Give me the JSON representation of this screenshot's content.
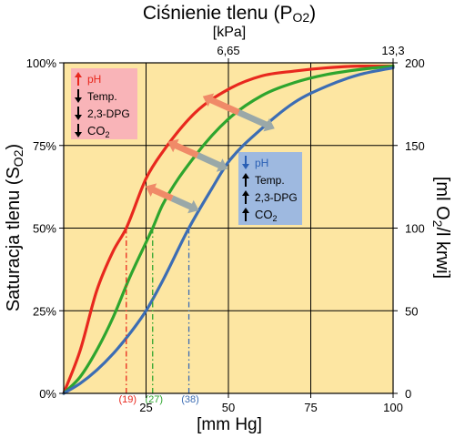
{
  "chart_data": {
    "type": "line",
    "title_prefix": "Ciśnienie tlenu (P",
    "title_sub": "O2",
    "title_suffix": ")",
    "title_unit": "[kPa]",
    "top_ticks": [
      {
        "at": 50,
        "label": "6,65"
      },
      {
        "at": 100,
        "label": "13,3"
      }
    ],
    "xlabel": "[mm Hg]",
    "x_ticks": [
      {
        "at": 25,
        "label": "25"
      },
      {
        "at": 50,
        "label": "50"
      },
      {
        "at": 75,
        "label": "75"
      },
      {
        "at": 100,
        "label": "100"
      }
    ],
    "xlim": [
      0,
      100
    ],
    "ylabel_left_prefix": "Saturacja tlenu (S",
    "ylabel_left_sub": "O2",
    "ylabel_left_suffix": ")",
    "y_ticks_left": [
      {
        "at": 0,
        "label": "0%"
      },
      {
        "at": 25,
        "label": "25%"
      },
      {
        "at": 50,
        "label": "50%"
      },
      {
        "at": 75,
        "label": "75%"
      },
      {
        "at": 100,
        "label": "100%"
      }
    ],
    "ylim": [
      0,
      100
    ],
    "ylabel_right_prefix": "[ml O",
    "ylabel_right_sub": "2",
    "ylabel_right_suffix": "/l krwi]",
    "y_ticks_right": [
      {
        "at": 0,
        "label": "0"
      },
      {
        "at": 25,
        "label": "50"
      },
      {
        "at": 50,
        "label": "100"
      },
      {
        "at": 75,
        "label": "150"
      },
      {
        "at": 100,
        "label": "200"
      }
    ],
    "grid": true,
    "background_color": "#fde6a2",
    "series": [
      {
        "color": "#e8281e",
        "p50": 19,
        "p50_label": "(19)",
        "x": [
          0,
          5,
          10,
          15,
          19,
          25,
          30,
          40,
          50,
          60,
          70,
          80,
          90,
          100
        ],
        "values": [
          0,
          13,
          31,
          43,
          50,
          65,
          73,
          85,
          92,
          96,
          97.5,
          98.5,
          99,
          99
        ]
      },
      {
        "color": "#2ea52e",
        "p50": 27,
        "p50_label": "(27)",
        "x": [
          0,
          5,
          10,
          15,
          20,
          27,
          30,
          40,
          50,
          60,
          70,
          80,
          90,
          100
        ],
        "values": [
          0,
          5,
          13,
          23,
          35,
          50,
          57,
          72,
          83,
          90,
          94,
          96.5,
          98,
          99
        ]
      },
      {
        "color": "#3c6db4",
        "p50": 38,
        "p50_label": "(38)",
        "x": [
          0,
          5,
          10,
          15,
          20,
          25,
          30,
          38,
          45,
          50,
          60,
          70,
          80,
          90,
          100
        ],
        "values": [
          0,
          3,
          7,
          12,
          18,
          25,
          34,
          50,
          62,
          70,
          80,
          88,
          93,
          96.5,
          98.5
        ]
      }
    ],
    "arrows": {
      "left_color": "#f08a68",
      "right_color": "#9aa8a8",
      "at_saturation": [
        85,
        72,
        59
      ]
    },
    "legend_left": {
      "color": "#f9b4b8",
      "items": [
        {
          "arrow": "up",
          "label": "pH",
          "label_color": "#e8281e",
          "arrow_color": "#e8281e"
        },
        {
          "arrow": "down",
          "label": "Temp.",
          "label_color": "#000000",
          "arrow_color": "#000000"
        },
        {
          "arrow": "down",
          "label": "2,3-DPG",
          "label_color": "#000000",
          "arrow_color": "#000000"
        },
        {
          "arrow": "down",
          "label_prefix": "CO",
          "label_sub": "2",
          "label_color": "#000000",
          "arrow_color": "#000000"
        }
      ]
    },
    "legend_right": {
      "color": "#9eb9e0",
      "items": [
        {
          "arrow": "down",
          "label": "pH",
          "label_color": "#2a5fb4",
          "arrow_color": "#2a5fb4"
        },
        {
          "arrow": "up",
          "label": "Temp.",
          "label_color": "#000000",
          "arrow_color": "#000000"
        },
        {
          "arrow": "up",
          "label": "2,3-DPG",
          "label_color": "#000000",
          "arrow_color": "#000000"
        },
        {
          "arrow": "up",
          "label_prefix": "CO",
          "label_sub": "2",
          "label_color": "#000000",
          "arrow_color": "#000000"
        }
      ]
    }
  }
}
